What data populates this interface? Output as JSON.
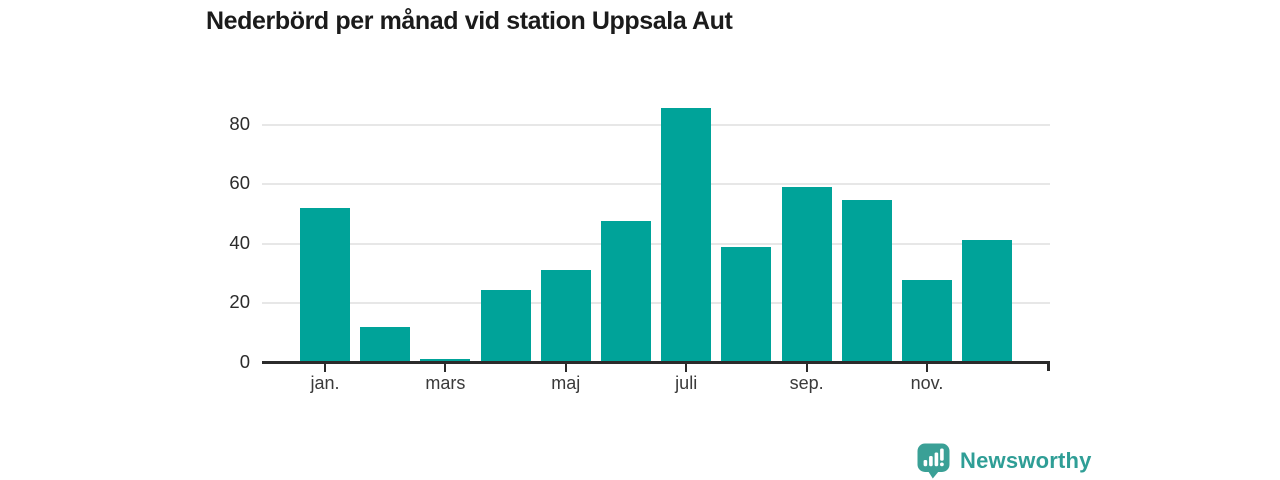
{
  "header": {
    "title": "Nederbörd per månad vid station Uppsala Aut"
  },
  "chart_data": {
    "type": "bar",
    "title": "Nederbörd per månad vid station Uppsala Aut",
    "n_bars": 12,
    "values": [
      51.9,
      12.1,
      1.4,
      24.4,
      31.1,
      47.7,
      85.8,
      39.1,
      59.0,
      54.7,
      27.8,
      41.4
    ],
    "x_ticks": [
      {
        "index": 0,
        "label": "jan."
      },
      {
        "index": 2,
        "label": "mars"
      },
      {
        "index": 4,
        "label": "maj"
      },
      {
        "index": 6,
        "label": "juli"
      },
      {
        "index": 8,
        "label": "sep."
      },
      {
        "index": 10,
        "label": "nov."
      }
    ],
    "y_ticks": [
      0,
      20,
      40,
      60,
      80
    ],
    "ylim": [
      0,
      90
    ],
    "grid": true,
    "legend_position": "none",
    "bar_color": "#00a399"
  },
  "footer": {
    "brand_label": "Newsworthy",
    "brand_color": "#2f9e96",
    "logo_icon": "newsworthy-bubble-chart-icon",
    "logo_color": "#3aa096"
  },
  "colors": {
    "background": "#ffffff",
    "title": "#1b1b1b",
    "axis": "#2b2b2b",
    "gridline": "#e7e7e7",
    "x_label": "#3a3a3a",
    "y_label": "#2b2b2b"
  }
}
